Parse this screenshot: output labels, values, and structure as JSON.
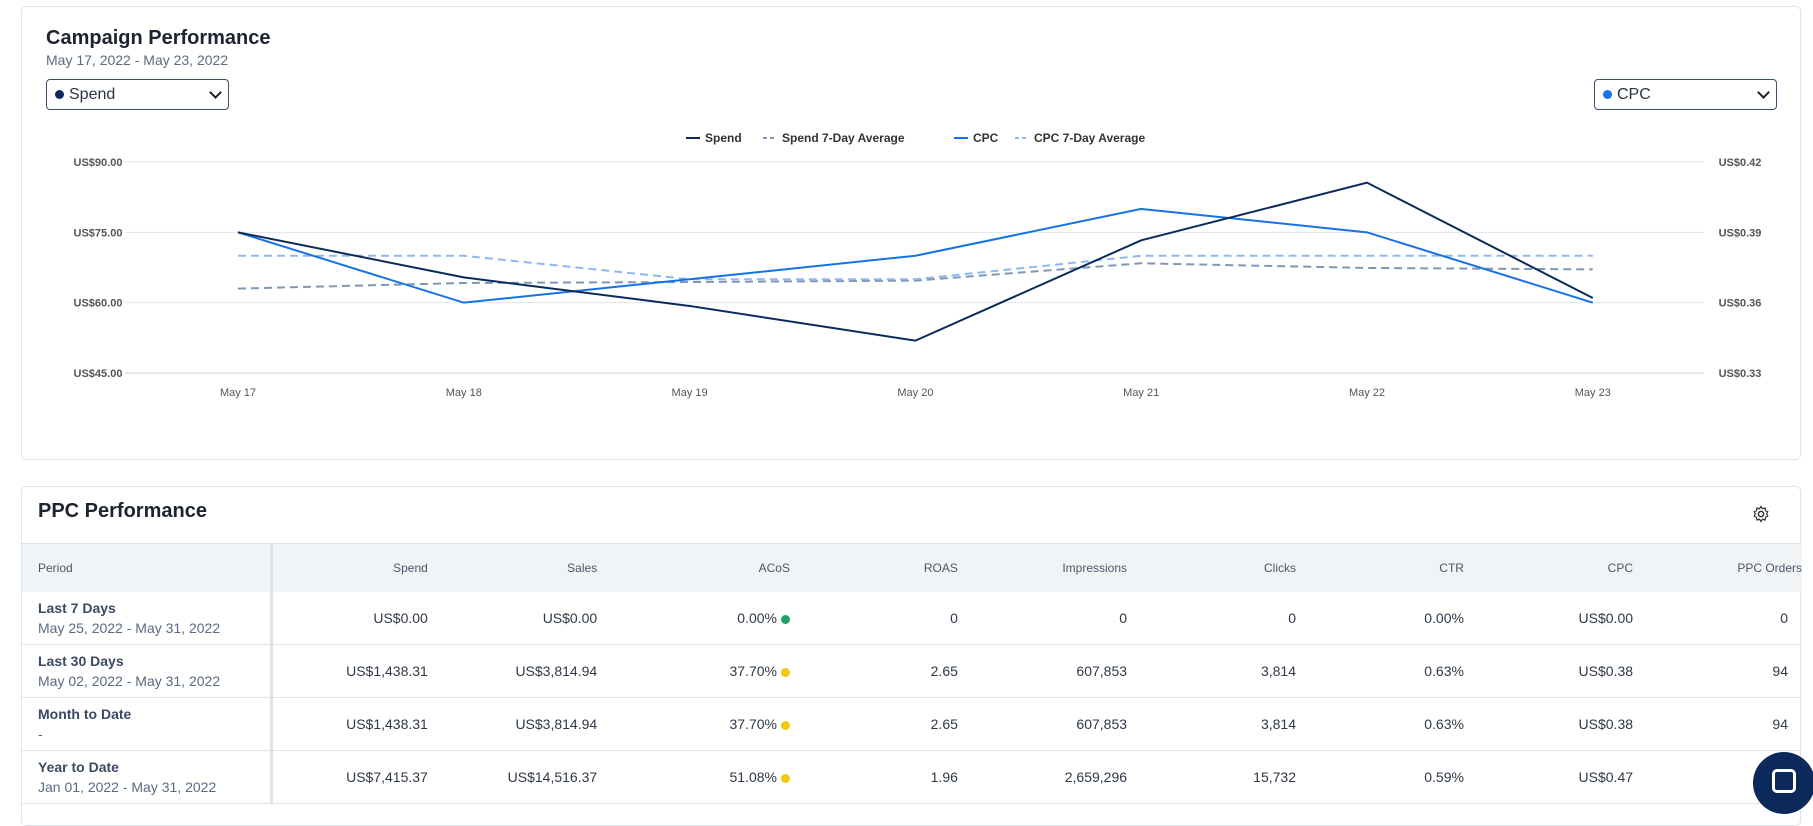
{
  "campaign": {
    "title": "Campaign Performance",
    "date_range": "May 17, 2022 - May 23, 2022",
    "left_select": {
      "value": "Spend",
      "color": "#0b2a5b"
    },
    "right_select": {
      "value": "CPC",
      "color": "#1473e6"
    }
  },
  "chart_data": {
    "type": "line",
    "categories": [
      "May 17",
      "May 18",
      "May 19",
      "May 20",
      "May 21",
      "May 22",
      "May 23"
    ],
    "legend_position": "top-center",
    "grid": true,
    "y_left": {
      "ticks": [
        "US$90.00",
        "US$75.00",
        "US$60.00",
        "US$45.00"
      ],
      "range": [
        45,
        90
      ]
    },
    "y_right": {
      "ticks": [
        "US$0.42",
        "US$0.39",
        "US$0.36",
        "US$0.33"
      ],
      "range": [
        0.33,
        0.42
      ]
    },
    "series": [
      {
        "name": "Spend",
        "axis": "left",
        "dashed": false,
        "color": "#0b2a5b",
        "values": [
          75.0,
          65.4,
          59.3,
          51.9,
          73.3,
          85.6,
          61.0
        ]
      },
      {
        "name": "Spend 7-Day Average",
        "axis": "left",
        "dashed": true,
        "color": "#7f97b5",
        "values": [
          63.0,
          64.2,
          64.4,
          64.7,
          68.4,
          67.4,
          67.1
        ]
      },
      {
        "name": "CPC",
        "axis": "right",
        "dashed": false,
        "color": "#1473e6",
        "values": [
          0.39,
          0.36,
          0.37,
          0.38,
          0.4,
          0.39,
          0.36
        ]
      },
      {
        "name": "CPC 7-Day Average",
        "axis": "right",
        "dashed": true,
        "color": "#8fb8f0",
        "values": [
          0.38,
          0.38,
          0.37,
          0.37,
          0.38,
          0.38,
          0.38
        ]
      }
    ]
  },
  "ppc": {
    "title": "PPC Performance",
    "settings_icon": "gear-icon",
    "columns": [
      "Period",
      "Spend",
      "Sales",
      "ACoS",
      "ROAS",
      "Impressions",
      "Clicks",
      "CTR",
      "CPC",
      "PPC Orders"
    ],
    "rows": [
      {
        "period": "Last 7 Days",
        "dates": "May 25, 2022 - May 31, 2022",
        "spend": "US$0.00",
        "sales": "US$0.00",
        "acos": "0.00%",
        "acos_status": "#22a06b",
        "roas": "0",
        "impressions": "0",
        "clicks": "0",
        "ctr": "0.00%",
        "cpc": "US$0.00",
        "orders": "0"
      },
      {
        "period": "Last 30 Days",
        "dates": "May 02, 2022 - May 31, 2022",
        "spend": "US$1,438.31",
        "sales": "US$3,814.94",
        "acos": "37.70%",
        "acos_status": "#f2c811",
        "roas": "2.65",
        "impressions": "607,853",
        "clicks": "3,814",
        "ctr": "0.63%",
        "cpc": "US$0.38",
        "orders": "94"
      },
      {
        "period": "Month to Date",
        "dates": "-",
        "spend": "US$1,438.31",
        "sales": "US$3,814.94",
        "acos": "37.70%",
        "acos_status": "#f2c811",
        "roas": "2.65",
        "impressions": "607,853",
        "clicks": "3,814",
        "ctr": "0.63%",
        "cpc": "US$0.38",
        "orders": "94"
      },
      {
        "period": "Year to Date",
        "dates": "Jan 01, 2022 - May 31, 2022",
        "spend": "US$7,415.37",
        "sales": "US$14,516.37",
        "acos": "51.08%",
        "acos_status": "#f2c811",
        "roas": "1.96",
        "impressions": "2,659,296",
        "clicks": "15,732",
        "ctr": "0.59%",
        "cpc": "US$0.47",
        "orders": ""
      }
    ]
  },
  "chat_icon": "chat-bubble-icon"
}
